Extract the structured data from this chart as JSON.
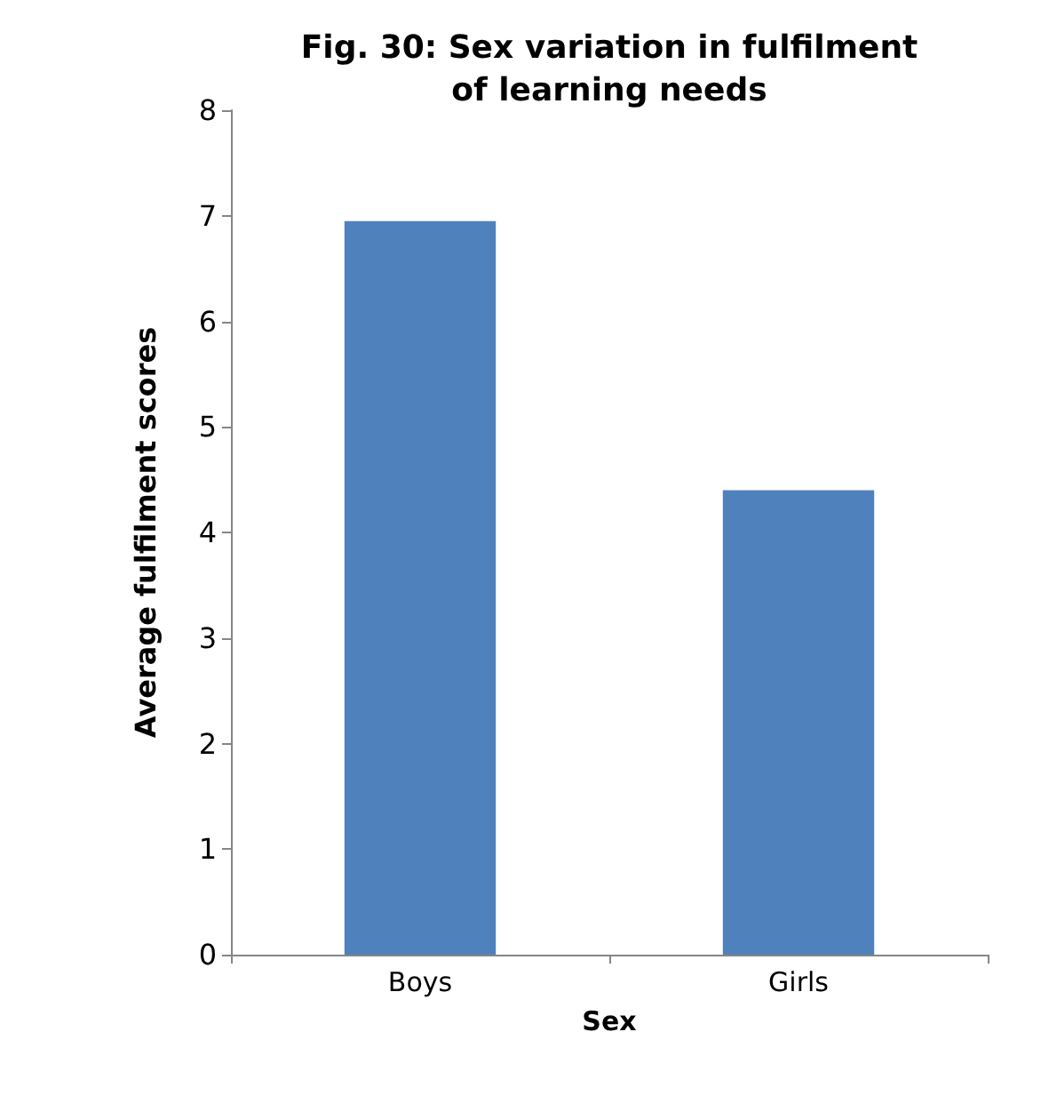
{
  "chart_data": {
    "type": "bar",
    "title": "Fig. 30: Sex variation in fulfilment\nof learning needs",
    "xlabel": "Sex",
    "ylabel": "Average fulfilment scores",
    "categories": [
      "Boys",
      "Girls"
    ],
    "values": [
      6.95,
      4.4
    ],
    "color": "#4f81bd",
    "ylim": [
      0,
      8
    ],
    "yticks": [
      0,
      1,
      2,
      3,
      4,
      5,
      6,
      7,
      8
    ],
    "grid": false
  }
}
